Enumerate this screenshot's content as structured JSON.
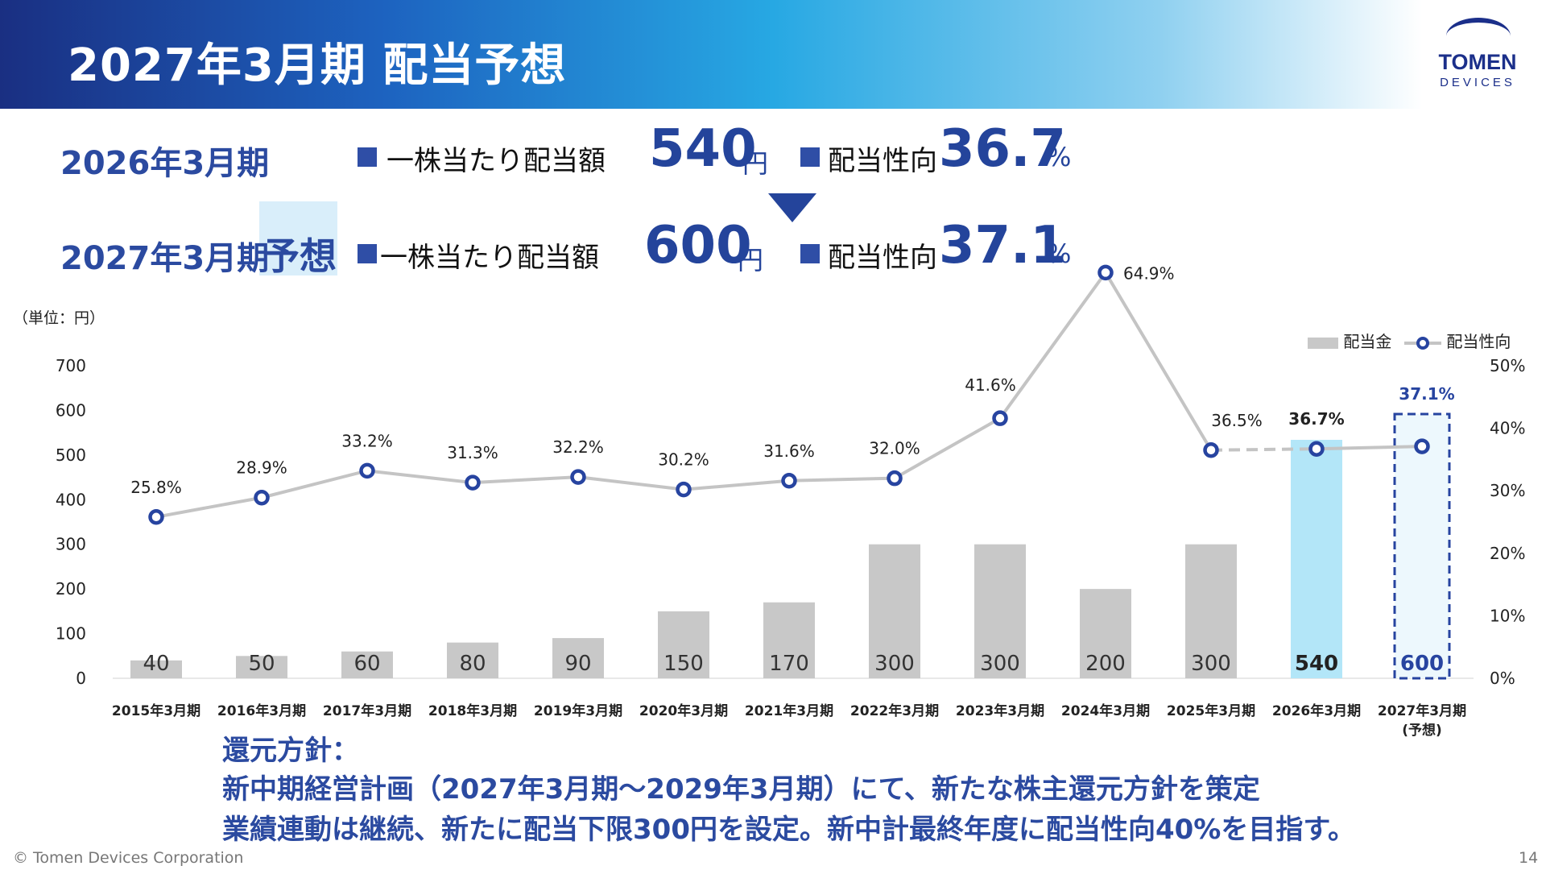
{
  "header": {
    "title": "2027年3月期 配当予想"
  },
  "logo": {
    "name": "TOMEN",
    "sub": "DEVICES"
  },
  "summary": {
    "row1": {
      "period": "2026年3月期",
      "dps_label": "一株当たり配当額",
      "dps_value": "540",
      "dps_unit": "円",
      "payout_label": "配当性向",
      "payout_value": "36.7",
      "payout_unit": "%"
    },
    "row2": {
      "period": "2027年3月期",
      "tag": "予想",
      "dps_label": "一株当たり配当額",
      "dps_value": "600",
      "dps_unit": "円",
      "payout_label": "配当性向",
      "payout_value": "37.1",
      "payout_unit": "%"
    }
  },
  "chart_unit_label": "（単位：円）",
  "legend": {
    "bar": "配当金",
    "line": "配当性向"
  },
  "colors": {
    "bar": "#c8c8c8",
    "bar_highlight": "#b3e6f8",
    "line": "#c4c4c4",
    "marker": "#2744a0",
    "text_blue": "#2b4aa0",
    "forecast_border": "#2744a0",
    "forecast_fill": "#edf8fd"
  },
  "chart_data": {
    "type": "bar",
    "title": "",
    "xlabel": "",
    "ylabel": "",
    "categories": [
      "2015年3月期",
      "2016年3月期",
      "2017年3月期",
      "2018年3月期",
      "2019年3月期",
      "2020年3月期",
      "2021年3月期",
      "2022年3月期",
      "2023年3月期",
      "2024年3月期",
      "2025年3月期",
      "2026年3月期",
      "2027年3月期"
    ],
    "category_sublabels": [
      "",
      "",
      "",
      "",
      "",
      "",
      "",
      "",
      "",
      "",
      "",
      "",
      "(予想)"
    ],
    "series": [
      {
        "name": "配当金",
        "type": "bar",
        "axis": "left",
        "values": [
          40,
          50,
          60,
          80,
          90,
          150,
          170,
          300,
          300,
          200,
          300,
          540,
          600
        ],
        "labels": [
          "40",
          "50",
          "60",
          "80",
          "90",
          "150",
          "170",
          "300",
          "300",
          "200",
          "300",
          "540",
          "600"
        ]
      },
      {
        "name": "配当性向",
        "type": "line",
        "axis": "right",
        "values": [
          25.8,
          28.9,
          33.2,
          31.3,
          32.2,
          30.2,
          31.6,
          32.0,
          41.6,
          64.9,
          36.5,
          36.7,
          37.1
        ],
        "labels": [
          "25.8%",
          "28.9%",
          "33.2%",
          "31.3%",
          "32.2%",
          "30.2%",
          "31.6%",
          "32.0%",
          "41.6%",
          "64.9%",
          "36.5%",
          "36.7%",
          "37.1%"
        ]
      }
    ],
    "ylim_left": [
      0,
      700
    ],
    "yticks_left": [
      "0",
      "100",
      "200",
      "300",
      "400",
      "500",
      "600",
      "700"
    ],
    "ylim_right": [
      0,
      50
    ],
    "yticks_right": [
      "0%",
      "10%",
      "20%",
      "30%",
      "40%",
      "50%"
    ],
    "highlight_index": 11,
    "forecast_index": 12,
    "grid": false,
    "legend_position": "top-right"
  },
  "policy": {
    "heading": "還元方針：",
    "line1": "新中期経営計画（2027年3月期〜2029年3月期）にて、新たな株主還元方針を策定",
    "line2": "業績連動は継続、新たに配当下限300円を設定。新中計最終年度に配当性向40%を目指す。"
  },
  "footer": {
    "copyright": "© Tomen Devices Corporation",
    "page": "14"
  }
}
